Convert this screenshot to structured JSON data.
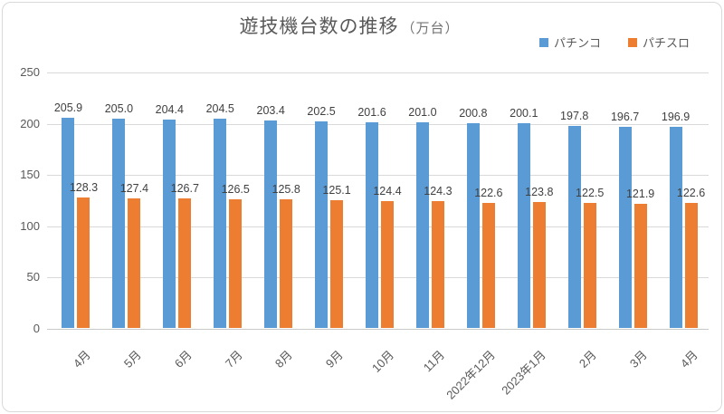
{
  "chart": {
    "title": "遊技機台数の推移",
    "title_unit": "（万台）",
    "colors": {
      "pachinko": "#5B9BD5",
      "pachislot": "#ED7D31",
      "gridline": "#D9D9D9",
      "axis_text": "#595959",
      "data_label": "#404040"
    }
  },
  "chart_data": {
    "type": "bar",
    "title": "遊技機台数の推移（万台）",
    "categories": [
      "4月",
      "5月",
      "6月",
      "7月",
      "8月",
      "9月",
      "10月",
      "11月",
      "2022年12月",
      "2023年1月",
      "2月",
      "3月",
      "4月"
    ],
    "series": [
      {
        "name": "パチンコ",
        "color": "#5B9BD5",
        "values": [
          205.9,
          205.0,
          204.4,
          204.5,
          203.4,
          202.5,
          201.6,
          201.0,
          200.8,
          200.1,
          197.8,
          196.7,
          196.9
        ]
      },
      {
        "name": "パチスロ",
        "color": "#ED7D31",
        "values": [
          128.3,
          127.4,
          126.7,
          126.5,
          125.8,
          125.1,
          124.4,
          124.3,
          122.6,
          123.8,
          122.5,
          121.9,
          122.6
        ]
      }
    ],
    "ylim": [
      0,
      250
    ],
    "yticks": [
      0,
      50,
      100,
      150,
      200,
      250
    ],
    "grid": true,
    "legend_position": "top-right",
    "data_labels": "outside-end, one decimal"
  }
}
